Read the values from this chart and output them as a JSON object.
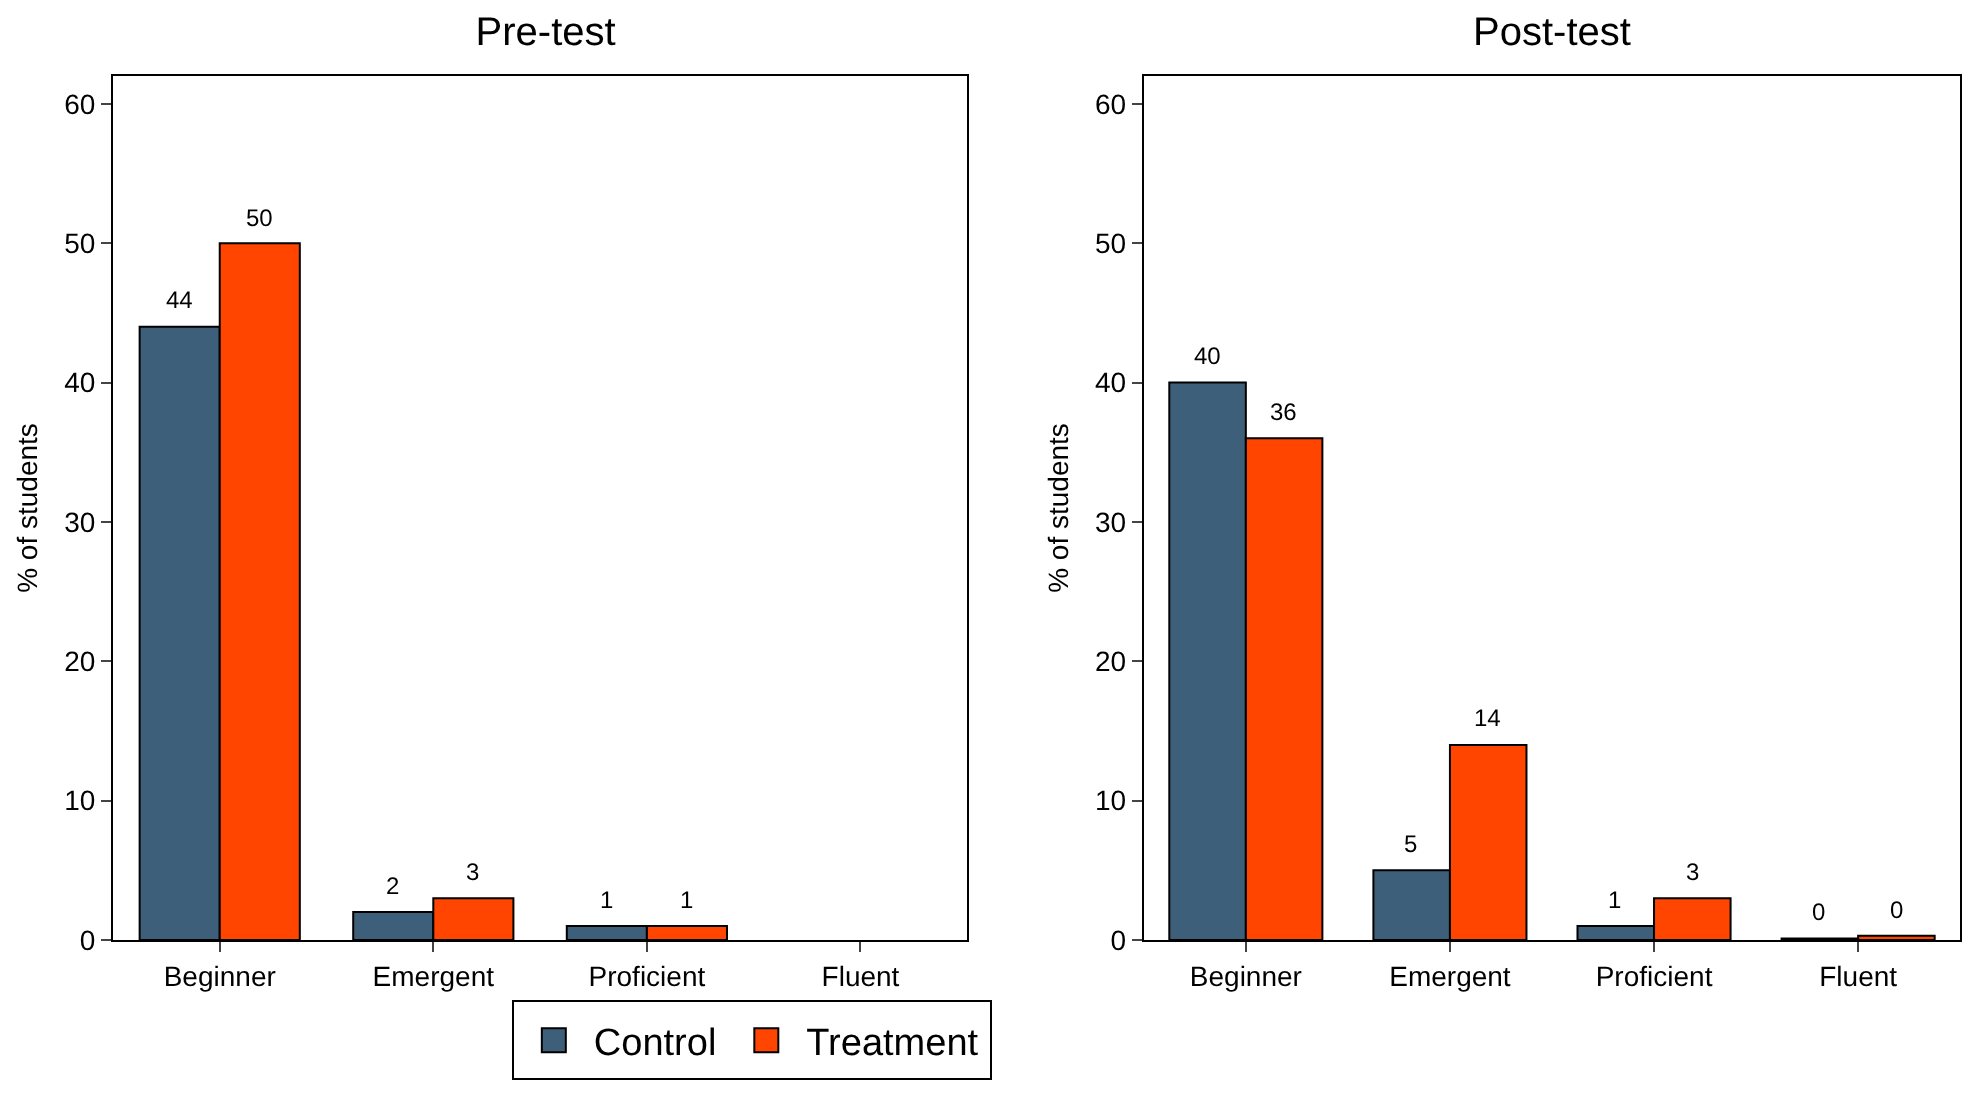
{
  "chart_data": [
    {
      "type": "bar",
      "title": "Pre-test",
      "ylabel": "% of students",
      "categories": [
        "Beginner",
        "Emergent",
        "Proficient",
        "Fluent"
      ],
      "series": [
        {
          "name": "Control",
          "color": "#3e5f7a",
          "values": [
            44,
            2,
            1,
            null
          ]
        },
        {
          "name": "Treatment",
          "color": "#ff4500",
          "values": [
            50,
            3,
            1,
            null
          ]
        }
      ],
      "ylim": [
        0,
        62
      ],
      "yticks": [
        0,
        10,
        20,
        30,
        40,
        50,
        60
      ],
      "grid": false,
      "data_labels": true,
      "legend": "bottom"
    },
    {
      "type": "bar",
      "title": "Post-test",
      "ylabel": "% of students",
      "categories": [
        "Beginner",
        "Emergent",
        "Proficient",
        "Fluent"
      ],
      "series": [
        {
          "color": "#3e5f7a",
          "values": [
            40,
            5,
            1,
            0.1
          ],
          "value_labels": [
            "40",
            "5",
            "1",
            "0"
          ]
        },
        {
          "color": "#ff4500",
          "values": [
            36,
            14,
            3,
            0.3
          ],
          "value_labels": [
            "36",
            "14",
            "3",
            "0"
          ]
        }
      ],
      "ylim": [
        0,
        62
      ],
      "yticks": [
        0,
        10,
        20,
        30,
        40,
        50,
        60
      ],
      "grid": false,
      "legend": false
    }
  ]
}
